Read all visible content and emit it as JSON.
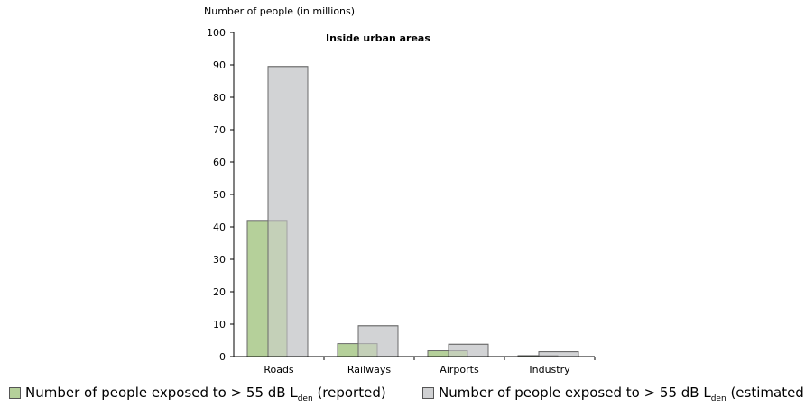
{
  "chart_data": {
    "type": "bar",
    "title": "Inside urban areas",
    "ylabel": "Number of people (in millions)",
    "ylim": [
      0,
      100
    ],
    "yticks": [
      0,
      10,
      20,
      30,
      40,
      50,
      60,
      70,
      80,
      90,
      100
    ],
    "categories": [
      "Roads",
      "Railways",
      "Airports",
      "Industry"
    ],
    "series": [
      {
        "legend_prefix": "Number of people exposed to > 55 dB L",
        "legend_sub": "den",
        "legend_suffix": " (reported)",
        "color": "#b5d09a",
        "values": [
          42,
          4,
          1.8,
          0.3
        ]
      },
      {
        "legend_prefix": "Number of people exposed to  > 55 dB L",
        "legend_sub": "den",
        "legend_suffix": " (estimated)",
        "color": "#cfd0d2",
        "values": [
          89.5,
          9.5,
          3.8,
          1.5
        ]
      }
    ]
  }
}
